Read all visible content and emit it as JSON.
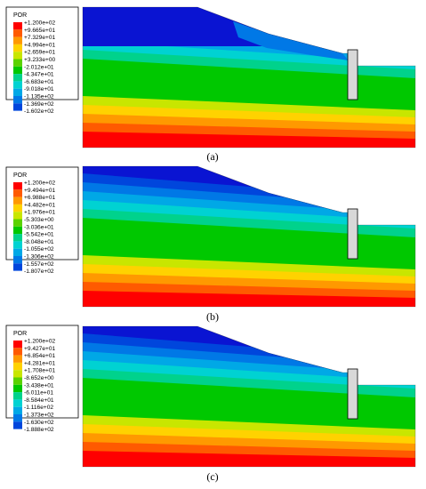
{
  "panels": [
    {
      "caption": "(a)",
      "legend": {
        "title": "POR",
        "labels": [
          "+1.200e+02",
          "+9.665e+01",
          "+7.329e+01",
          "+4.994e+01",
          "+2.659e+01",
          "+3.233e+00",
          "-2.012e+01",
          "-4.347e+01",
          "-6.683e+01",
          "-9.018e+01",
          "-1.135e+02",
          "-1.369e+02",
          "-1.602e+02"
        ]
      }
    },
    {
      "caption": "(b)",
      "legend": {
        "title": "POR",
        "labels": [
          "+1.200e+02",
          "+9.494e+01",
          "+6.988e+01",
          "+4.482e+01",
          "+1.976e+01",
          "-5.303e+00",
          "-3.036e+01",
          "-5.542e+01",
          "-8.048e+01",
          "-1.055e+02",
          "-1.306e+02",
          "-1.557e+02",
          "-1.807e+02"
        ]
      }
    },
    {
      "caption": "(c)",
      "legend": {
        "title": "POR",
        "labels": [
          "+1.200e+02",
          "+9.427e+01",
          "+6.854e+01",
          "+4.281e+01",
          "+1.708e+01",
          "-8.652e+00",
          "-3.438e+01",
          "-6.011e+01",
          "-8.584e+01",
          "-1.116e+02",
          "-1.373e+02",
          "-1.630e+02",
          "-1.888e+02"
        ]
      }
    }
  ],
  "colors": {
    "scale": [
      "#ff0000",
      "#ff5a00",
      "#ff9900",
      "#ffd200",
      "#c8e600",
      "#5ad200",
      "#00c800",
      "#00d28c",
      "#00d2d2",
      "#00a8e6",
      "#0078e6",
      "#0046dc",
      "#0a14d2"
    ]
  }
}
